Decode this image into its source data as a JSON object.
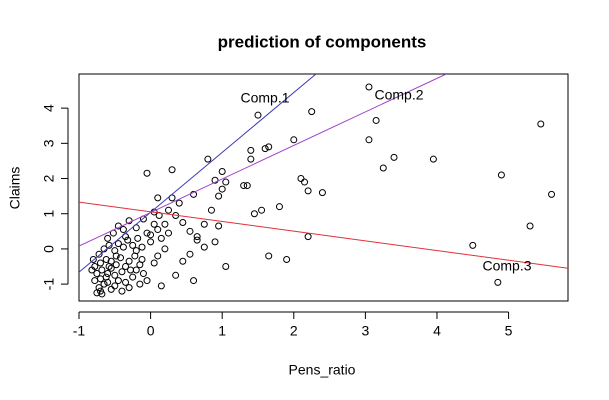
{
  "chart_data": {
    "type": "scatter",
    "title": "prediction of components",
    "x_label": "Pens_ratio",
    "y_label": "Claims",
    "xlim": [
      -1,
      5.83
    ],
    "ylim": [
      -1.48,
      4.97
    ],
    "xticks": [
      -1,
      0,
      1,
      2,
      3,
      4,
      5
    ],
    "yticks": [
      -1,
      0,
      1,
      2,
      3,
      4
    ],
    "color": "#000000",
    "x": [
      3.05,
      3.15,
      3.05,
      3.25,
      3.4,
      3.95,
      5.45,
      4.9,
      5.6,
      5.3,
      4.5,
      4.85,
      2.25,
      2.0,
      1.5,
      1.6,
      1.65,
      1.4,
      1.4,
      1.3,
      1.35,
      1.8,
      2.1,
      2.15,
      2.2,
      2.4,
      1.9,
      1.65,
      2.2,
      1.45,
      1.55,
      1.05,
      1.0,
      1.05,
      0.8,
      0.9,
      0.95,
      1.0,
      0.85,
      0.95,
      0.9,
      0.6,
      0.55,
      0.65,
      0.55,
      0.45,
      0.3,
      0.3,
      0.4,
      0.35,
      0.2,
      0.45,
      -0.05,
      0.1,
      0.05,
      0.25,
      0.0,
      0.1,
      0.15,
      0.35,
      0.6,
      0.75,
      0.65,
      0.75,
      -0.75,
      -0.7,
      -0.72,
      -0.65,
      -0.78,
      -0.7,
      -0.6,
      -0.55,
      -0.5,
      -0.45,
      -0.75,
      -0.68,
      -0.6,
      -0.55,
      -0.5,
      -0.4,
      -0.35,
      -0.3,
      -0.25,
      -0.2,
      -0.78,
      -0.7,
      -0.62,
      -0.55,
      -0.48,
      -0.42,
      -0.35,
      -0.3,
      -0.22,
      -0.15,
      -0.1,
      -0.05,
      -0.72,
      -0.65,
      -0.58,
      -0.5,
      -0.45,
      -0.38,
      -0.32,
      -0.25,
      -0.18,
      -0.12,
      -0.05,
      0.0,
      -0.6,
      -0.52,
      -0.45,
      -0.38,
      -0.3,
      -0.2,
      -0.1,
      0.05,
      0.1,
      0.15,
      0.2,
      0.05,
      -0.4,
      -0.15,
      -0.8,
      -0.82,
      -0.68,
      -0.58,
      -0.28,
      -0.12,
      0.12,
      0.25,
      -0.35,
      -0.62,
      -0.48,
      -0.2
    ],
    "values": [
      4.6,
      3.65,
      3.1,
      2.3,
      2.6,
      2.55,
      3.55,
      2.1,
      1.55,
      0.65,
      0.1,
      -0.95,
      3.9,
      3.1,
      3.8,
      2.85,
      2.9,
      2.8,
      2.55,
      1.8,
      1.8,
      1.2,
      2.0,
      1.9,
      1.65,
      1.6,
      -0.3,
      -0.2,
      0.35,
      1.0,
      1.1,
      1.9,
      2.2,
      -0.5,
      2.55,
      1.95,
      1.5,
      1.7,
      1.1,
      0.65,
      0.2,
      1.55,
      0.5,
      0.25,
      -0.15,
      -0.35,
      2.25,
      1.45,
      1.3,
      0.95,
      0.7,
      0.75,
      2.15,
      1.45,
      1.05,
      1.1,
      0.4,
      -0.2,
      -1.05,
      -0.75,
      -0.9,
      0.7,
      0.35,
      0.05,
      -1.25,
      -1.2,
      -1.1,
      -1.0,
      -0.9,
      -0.85,
      -0.95,
      -1.15,
      -1.05,
      -0.9,
      -0.7,
      -0.6,
      -0.7,
      -0.55,
      -0.75,
      -0.65,
      -0.95,
      -1.1,
      -0.8,
      -0.6,
      -0.5,
      -0.4,
      -0.3,
      -0.35,
      -0.45,
      -0.25,
      -0.5,
      -0.35,
      -0.2,
      -0.45,
      -0.7,
      -0.9,
      -0.15,
      0.0,
      0.1,
      -0.05,
      0.15,
      0.05,
      0.25,
      0.1,
      0.3,
      0.05,
      0.45,
      0.2,
      0.3,
      0.45,
      0.65,
      0.55,
      0.8,
      0.6,
      0.85,
      0.7,
      0.55,
      0.3,
      0.0,
      -0.4,
      -1.2,
      -1.0,
      -0.3,
      -0.6,
      -1.28,
      -0.5,
      -0.6,
      -0.3,
      0.95,
      0.45,
      0.35,
      -0.8,
      -0.2,
      -0.05
    ],
    "lines": [
      {
        "name": "Comp.1",
        "color": "#3a3ab8",
        "x": [
          -1,
          2.31
        ],
        "values": [
          -0.66,
          4.97
        ]
      },
      {
        "name": "Comp.2",
        "color": "#a040d0",
        "x": [
          -1,
          4.13
        ],
        "values": [
          0.08,
          4.97
        ]
      },
      {
        "name": "Comp.3",
        "color": "#e0303a",
        "x": [
          -1,
          5.83
        ],
        "values": [
          1.33,
          -0.55
        ]
      }
    ]
  }
}
